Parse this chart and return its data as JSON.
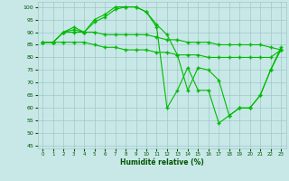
{
  "line1": {
    "x": [
      0,
      1,
      2,
      3,
      4,
      5,
      6,
      7,
      8,
      9,
      10,
      11,
      12,
      13,
      14,
      15,
      16,
      17,
      18,
      19,
      20,
      21,
      22,
      23
    ],
    "y": [
      86,
      86,
      90,
      92,
      90,
      95,
      97,
      100,
      100,
      100,
      98,
      93,
      89,
      81,
      67,
      76,
      75,
      71,
      57,
      60,
      60,
      65,
      75,
      84
    ]
  },
  "line2": {
    "x": [
      0,
      1,
      2,
      3,
      4,
      5,
      6,
      7,
      8,
      9,
      10,
      11,
      12,
      13,
      14,
      15,
      16,
      17,
      18,
      19,
      20,
      21,
      22,
      23
    ],
    "y": [
      86,
      86,
      90,
      91,
      90,
      94,
      96,
      99,
      100,
      100,
      98,
      92,
      60,
      67,
      76,
      67,
      67,
      54,
      57,
      60,
      60,
      65,
      75,
      83
    ]
  },
  "line3": {
    "x": [
      0,
      1,
      2,
      3,
      4,
      5,
      6,
      7,
      8,
      9,
      10,
      11,
      12,
      13,
      14,
      15,
      16,
      17,
      18,
      19,
      20,
      21,
      22,
      23
    ],
    "y": [
      86,
      86,
      90,
      90,
      90,
      90,
      89,
      89,
      89,
      89,
      89,
      88,
      87,
      87,
      86,
      86,
      86,
      85,
      85,
      85,
      85,
      85,
      84,
      83
    ]
  },
  "line4": {
    "x": [
      0,
      1,
      2,
      3,
      4,
      5,
      6,
      7,
      8,
      9,
      10,
      11,
      12,
      13,
      14,
      15,
      16,
      17,
      18,
      19,
      20,
      21,
      22,
      23
    ],
    "y": [
      86,
      86,
      86,
      86,
      86,
      85,
      84,
      84,
      83,
      83,
      83,
      82,
      82,
      81,
      81,
      81,
      80,
      80,
      80,
      80,
      80,
      80,
      80,
      83
    ]
  },
  "line_color": "#00BB00",
  "bg_color": "#C8E8E8",
  "grid_color": "#A0C8C8",
  "xlabel": "Humidité relative (%)",
  "ylim": [
    44,
    102
  ],
  "xlim": [
    -0.5,
    23.5
  ],
  "yticks": [
    45,
    50,
    55,
    60,
    65,
    70,
    75,
    80,
    85,
    90,
    95,
    100
  ],
  "xticks": [
    0,
    1,
    2,
    3,
    4,
    5,
    6,
    7,
    8,
    9,
    10,
    11,
    12,
    13,
    14,
    15,
    16,
    17,
    18,
    19,
    20,
    21,
    22,
    23
  ]
}
